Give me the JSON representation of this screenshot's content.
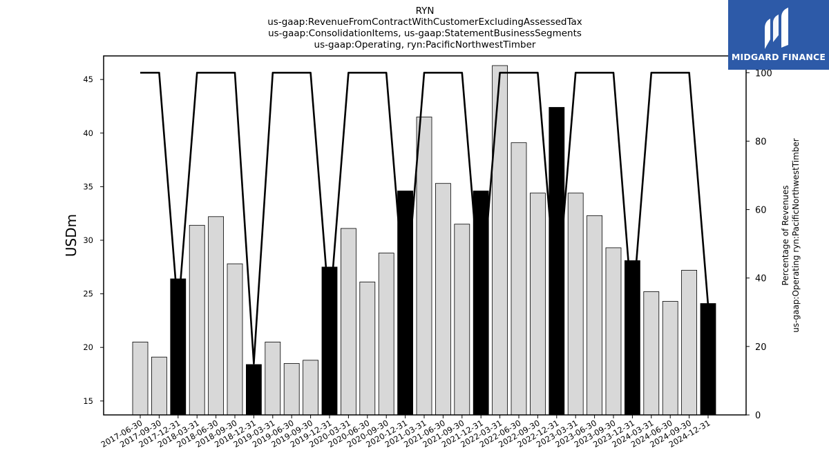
{
  "brand": {
    "name": "MIDGARD FINANCE",
    "bg_color": "#2d5aa8"
  },
  "chart_data": {
    "type": "bar",
    "title": "RYN",
    "subtitle_lines": [
      "us-gaap:RevenueFromContractWithCustomerExcludingAssessedTax",
      "us-gaap:ConsolidationItems, us-gaap:StatementBusinessSegments",
      "us-gaap:Operating, ryn:PacificNorthwestTimber"
    ],
    "ylabel": "USDm",
    "y2label_lines": [
      "Percentage of Revenues",
      "us-gaap:Operating ryn:PacificNorthwestTimber"
    ],
    "ylim": [
      13.7,
      47.2
    ],
    "yticks": [
      15,
      20,
      25,
      30,
      35,
      40,
      45
    ],
    "y2lim": [
      0,
      104.9
    ],
    "y2ticks": [
      0,
      20,
      40,
      60,
      80,
      100
    ],
    "categories": [
      "2017-06-30",
      "2017-09-30",
      "2017-12-31",
      "2018-03-31",
      "2018-06-30",
      "2018-09-30",
      "2018-12-31",
      "2019-03-31",
      "2019-06-30",
      "2019-09-30",
      "2019-12-31",
      "2020-03-31",
      "2020-06-30",
      "2020-09-30",
      "2020-12-31",
      "2021-03-31",
      "2021-06-30",
      "2021-09-30",
      "2021-12-31",
      "2022-03-31",
      "2022-06-30",
      "2022-09-30",
      "2022-12-31",
      "2023-03-31",
      "2023-06-30",
      "2023-09-30",
      "2023-12-31",
      "2024-03-31",
      "2024-06-30",
      "2024-09-30",
      "2024-12-31"
    ],
    "series": [
      {
        "type": "bar",
        "values": [
          20.5,
          19.1,
          26.4,
          31.4,
          32.2,
          27.8,
          18.4,
          20.5,
          18.5,
          18.8,
          27.5,
          31.1,
          26.1,
          28.8,
          34.6,
          41.5,
          35.3,
          31.5,
          34.6,
          46.3,
          39.1,
          34.4,
          42.4,
          34.4,
          32.3,
          29.3,
          28.1,
          25.2,
          24.3,
          27.2,
          24.1
        ],
        "highlight": [
          false,
          false,
          true,
          false,
          false,
          false,
          true,
          false,
          false,
          false,
          true,
          false,
          false,
          false,
          true,
          false,
          false,
          false,
          true,
          false,
          false,
          false,
          true,
          false,
          false,
          false,
          true,
          false,
          false,
          false,
          true
        ]
      },
      {
        "type": "line",
        "axis": "right",
        "values": [
          100,
          100,
          30,
          100,
          100,
          100,
          15,
          100,
          100,
          100,
          30,
          100,
          100,
          100,
          32,
          100,
          100,
          100,
          33,
          100,
          100,
          100,
          33,
          100,
          100,
          100,
          30,
          100,
          100,
          100,
          32
        ]
      }
    ],
    "colors": {
      "bar": "#d8d8d8",
      "bar_highlight": "#000000",
      "line": "#000000"
    }
  }
}
